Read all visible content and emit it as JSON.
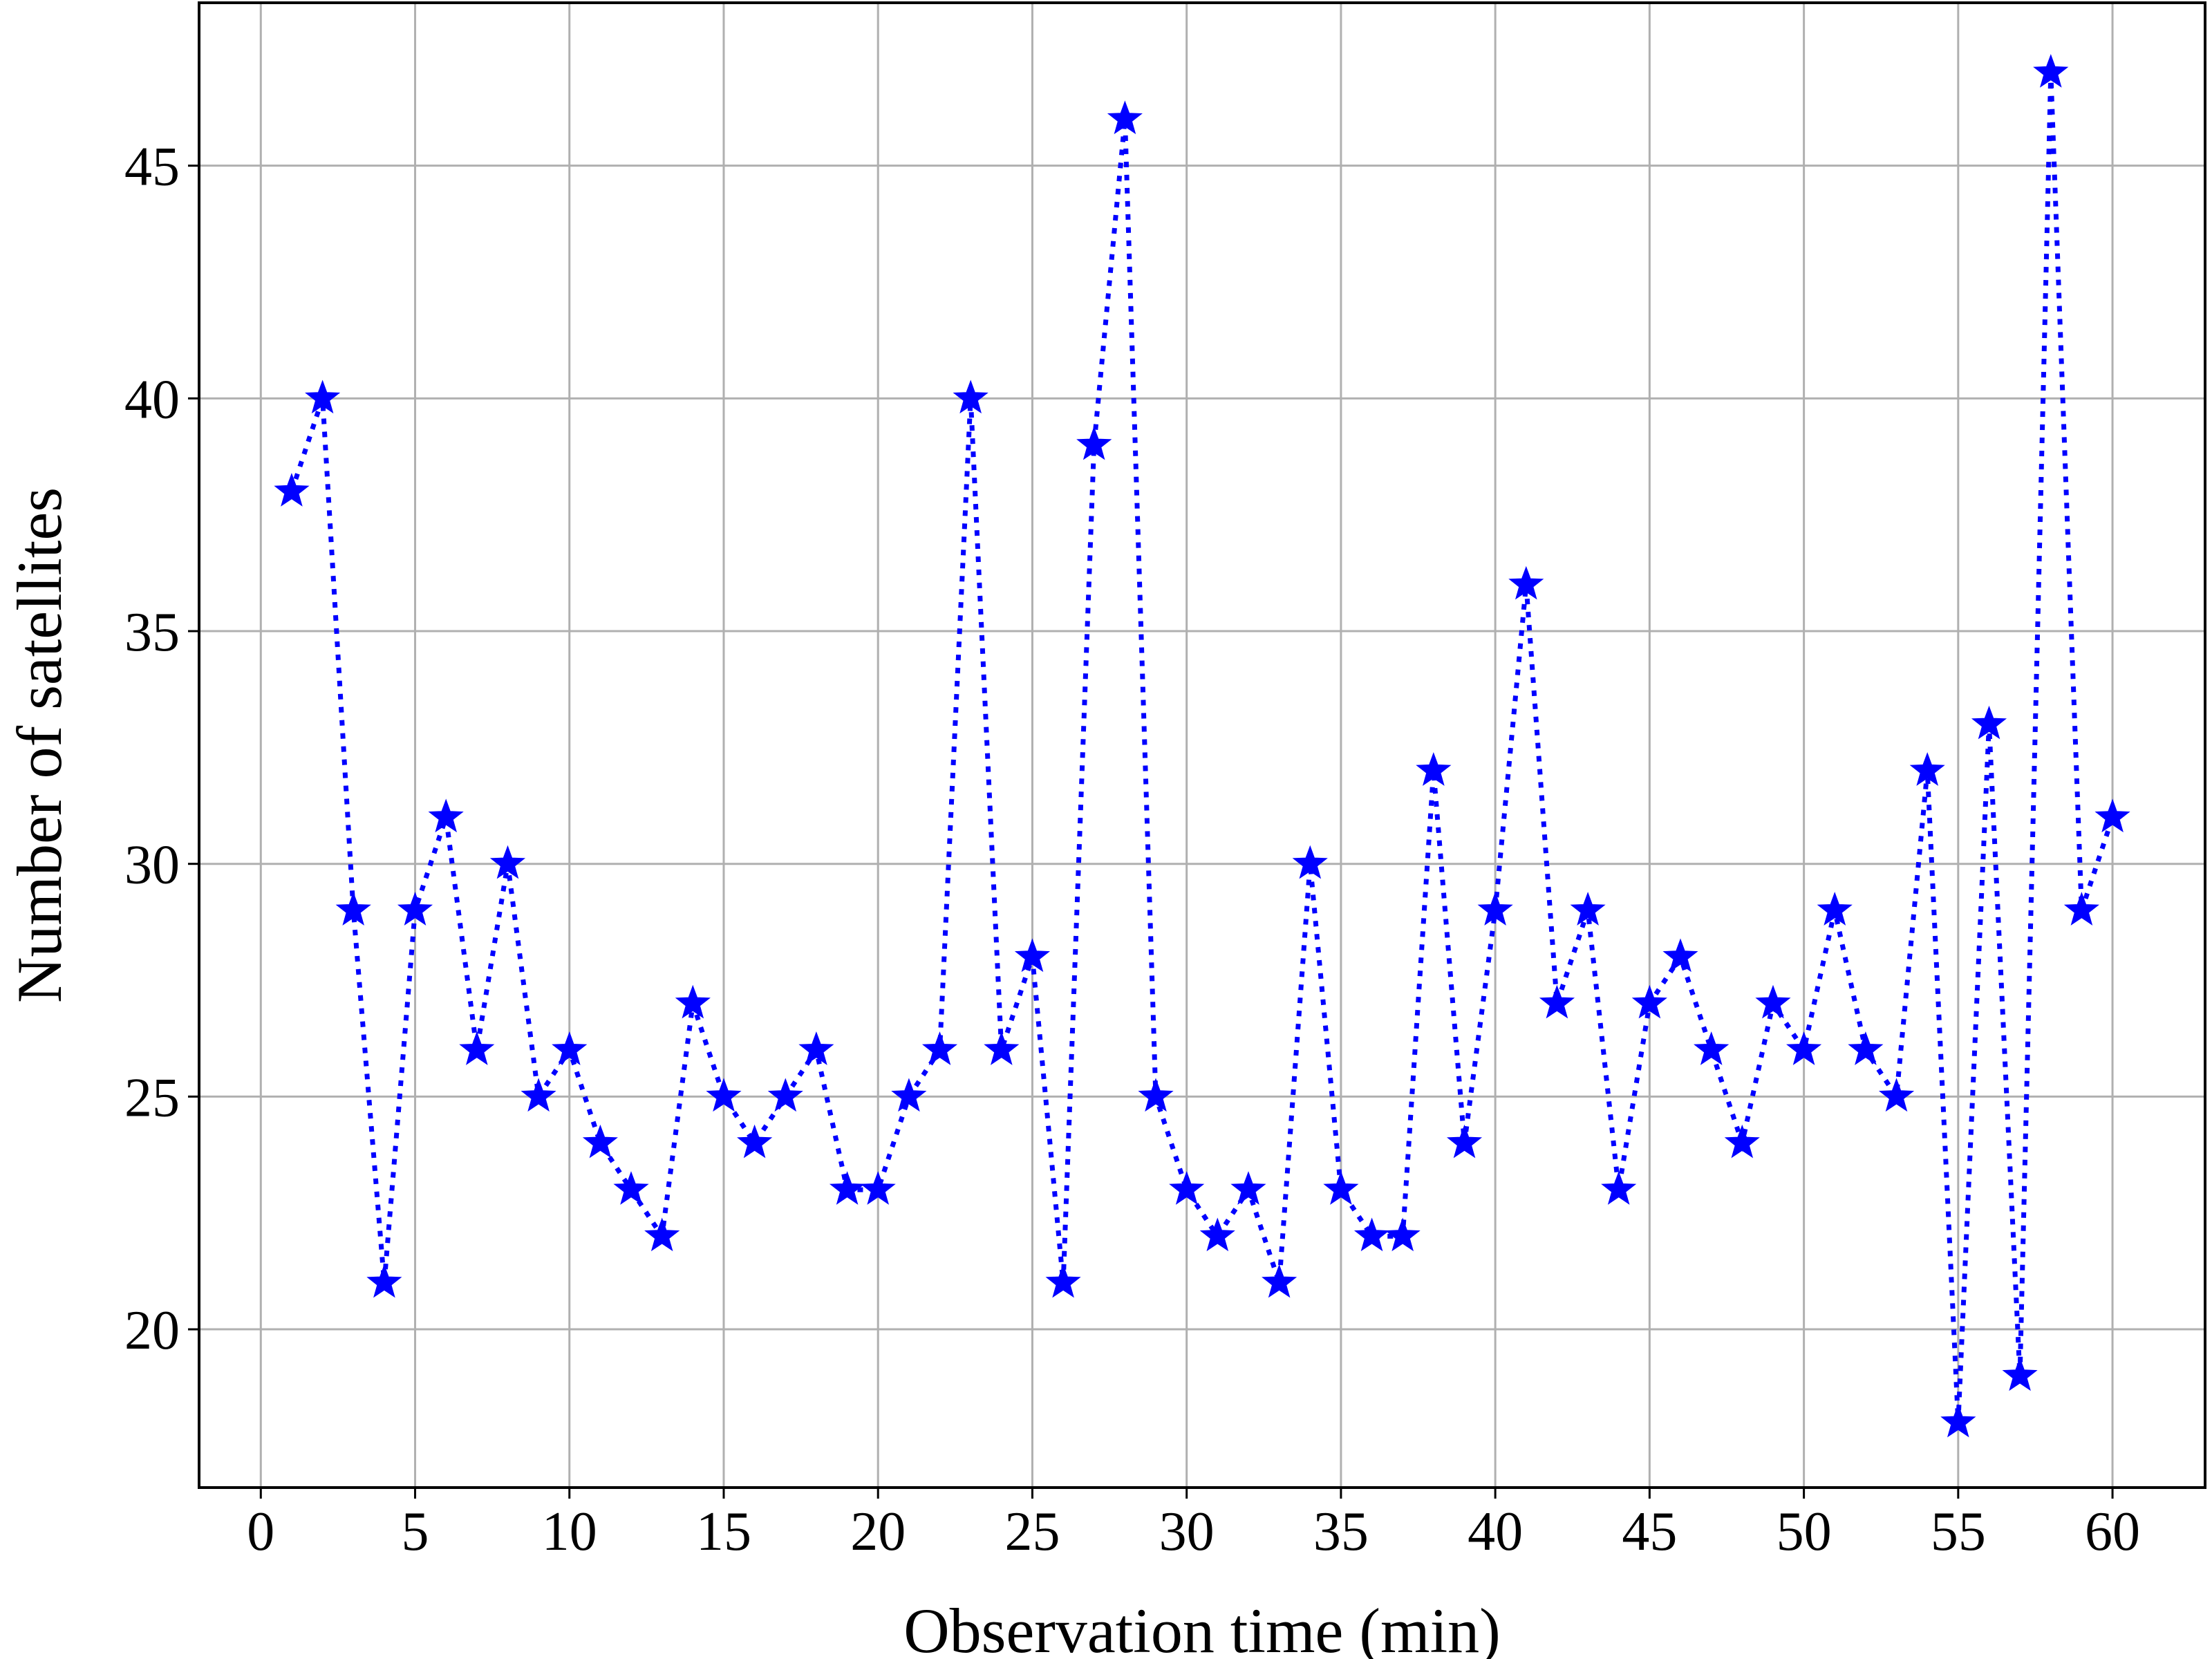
{
  "chart_data": {
    "type": "line",
    "title": "",
    "xlabel": "Observation time (min)",
    "ylabel": "Number of satellites",
    "xlim": [
      -2,
      63
    ],
    "ylim": [
      16.6,
      48.5
    ],
    "xticks": [
      0,
      5,
      10,
      15,
      20,
      25,
      30,
      35,
      40,
      45,
      50,
      55,
      60
    ],
    "yticks": [
      20,
      25,
      30,
      35,
      40,
      45
    ],
    "grid": true,
    "legend": "none",
    "series": [
      {
        "color": "#0000ff",
        "line_style": "dotted",
        "marker": "star",
        "x": [
          1,
          2,
          3,
          4,
          5,
          6,
          7,
          8,
          9,
          10,
          11,
          12,
          13,
          14,
          15,
          16,
          17,
          18,
          19,
          20,
          21,
          22,
          23,
          24,
          25,
          26,
          27,
          28,
          29,
          30,
          31,
          32,
          33,
          34,
          35,
          36,
          37,
          38,
          39,
          40,
          41,
          42,
          43,
          44,
          45,
          46,
          47,
          48,
          49,
          50,
          51,
          52,
          53,
          54,
          55,
          56,
          57,
          58,
          59,
          60
        ],
        "values": [
          38,
          40,
          29,
          21,
          29,
          31,
          26,
          30,
          25,
          26,
          24,
          23,
          22,
          27,
          25,
          24,
          25,
          26,
          23,
          23,
          25,
          26,
          40,
          26,
          28,
          21,
          39,
          46,
          25,
          23,
          22,
          23,
          21,
          30,
          23,
          22,
          22,
          32,
          24,
          29,
          36,
          27,
          29,
          23,
          27,
          28,
          26,
          24,
          27,
          26,
          29,
          26,
          25,
          32,
          18,
          33,
          19,
          47,
          29,
          31
        ]
      }
    ]
  }
}
